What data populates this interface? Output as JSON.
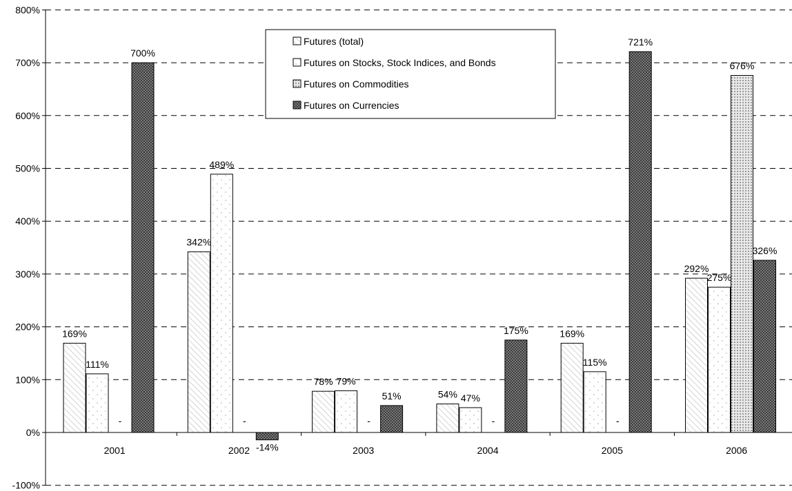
{
  "chart_data": {
    "type": "bar",
    "categories": [
      "2001",
      "2002",
      "2003",
      "2004",
      "2005",
      "2006"
    ],
    "series": [
      {
        "name": "Futures (total)",
        "values": [
          169,
          342,
          78,
          54,
          169,
          292
        ],
        "labels": [
          "169%",
          "342%",
          "78%",
          "54%",
          "169%",
          "292%"
        ],
        "pattern": "diagonal-light"
      },
      {
        "name": "Futures on Stocks, Stock Indices, and Bonds",
        "values": [
          111,
          489,
          79,
          47,
          115,
          275
        ],
        "labels": [
          "111%",
          "489%",
          "79%",
          "47%",
          "115%",
          "275%"
        ],
        "pattern": "dots-light"
      },
      {
        "name": "Futures on Commodities",
        "values": [
          null,
          null,
          null,
          null,
          null,
          676
        ],
        "labels": [
          "-",
          "-",
          "-",
          "-",
          "-",
          "676%"
        ],
        "pattern": "dots-dense"
      },
      {
        "name": "Futures on Currencies",
        "values": [
          700,
          -14,
          51,
          175,
          721,
          326
        ],
        "labels": [
          "700%",
          "-14%",
          "51%",
          "175%",
          "721%",
          "326%"
        ],
        "pattern": "crosshatch-dark"
      }
    ],
    "y_ticks": [
      "-100%",
      "0%",
      "100%",
      "200%",
      "300%",
      "400%",
      "500%",
      "600%",
      "700%",
      "800%"
    ],
    "ylim": [
      -100,
      800
    ],
    "grid": "dashed horizontal",
    "legend_position": "top-center",
    "title": "",
    "xlabel": "",
    "ylabel": ""
  }
}
